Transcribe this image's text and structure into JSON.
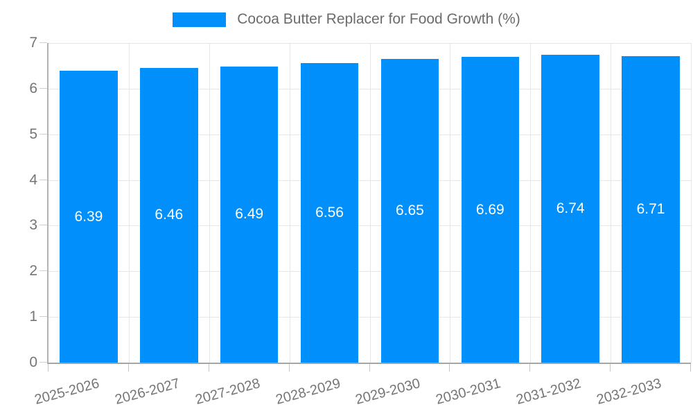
{
  "chart_data": {
    "type": "bar",
    "title": "",
    "xlabel": "",
    "ylabel": "",
    "legend": {
      "position": "top",
      "label": "Cocoa Butter Replacer for Food Growth (%)"
    },
    "categories": [
      "2025-2026",
      "2026-2027",
      "2027-2028",
      "2028-2029",
      "2029-2030",
      "2030-2031",
      "2031-2032",
      "2032-2033"
    ],
    "series": [
      {
        "name": "Cocoa Butter Replacer for Food Growth (%)",
        "values": [
          6.39,
          6.46,
          6.49,
          6.56,
          6.65,
          6.69,
          6.74,
          6.71
        ]
      }
    ],
    "data_labels": [
      "6.39",
      "6.46",
      "6.49",
      "6.56",
      "6.65",
      "6.69",
      "6.74",
      "6.71"
    ],
    "ylim": [
      0,
      7
    ],
    "yticks": [
      0,
      1,
      2,
      3,
      4,
      5,
      6,
      7
    ],
    "grid": true,
    "bar_label_position": "middle"
  },
  "colors": {
    "accent": "#008FFB",
    "grid": "#e6e6e6",
    "axis": "#a6a6a6",
    "tick_label": "#757575",
    "legend_text": "#6b6b6b",
    "data_label": "#ffffff"
  }
}
